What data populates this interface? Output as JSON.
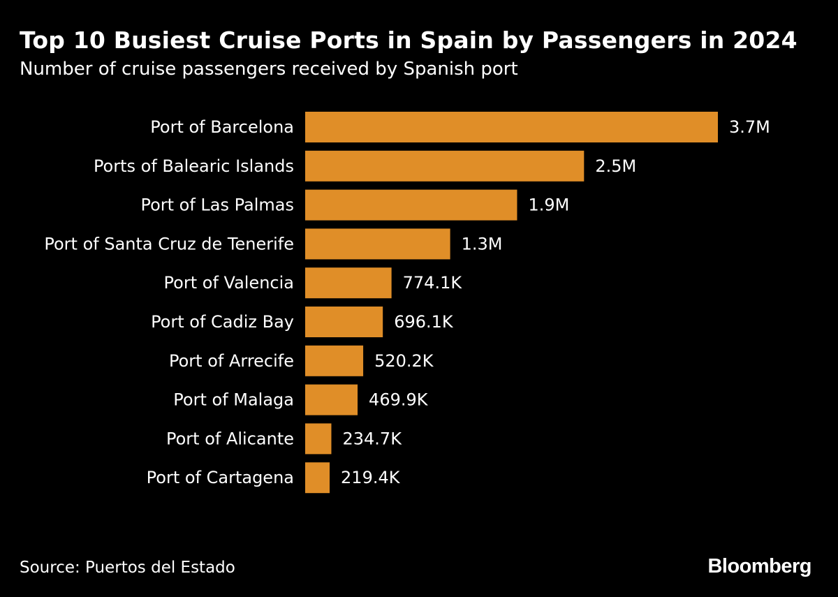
{
  "header": {
    "title": "Top 10 Busiest Cruise Ports in Spain by Passengers in 2024",
    "subtitle": "Number of cruise passengers received by Spanish port"
  },
  "footer": {
    "source": "Source: Puertos del Estado",
    "brand": "Bloomberg"
  },
  "colors": {
    "background": "#000000",
    "bar": "#E08E28",
    "text": "#ffffff"
  },
  "chart_data": {
    "type": "bar",
    "orientation": "horizontal",
    "title": "Top 10 Busiest Cruise Ports in Spain by Passengers in 2024",
    "subtitle": "Number of cruise passengers received by Spanish port",
    "categories": [
      "Port of Barcelona",
      "Ports of Balearic Islands",
      "Port of Las Palmas",
      "Port of Santa Cruz de Tenerife",
      "Port of Valencia",
      "Port of Cadiz Bay",
      "Port of Arrecife",
      "Port of Malaga",
      "Port of Alicante",
      "Port of Cartagena"
    ],
    "values": [
      3700000,
      2500000,
      1900000,
      1300000,
      774100,
      696100,
      520200,
      469900,
      234700,
      219400
    ],
    "value_labels": [
      "3.7M",
      "2.5M",
      "1.9M",
      "1.3M",
      "774.1K",
      "696.1K",
      "520.2K",
      "469.9K",
      "234.7K",
      "219.4K"
    ],
    "xlim": [
      0,
      3700000
    ],
    "xlabel": "",
    "ylabel": "",
    "grid": false,
    "legend": "none"
  }
}
